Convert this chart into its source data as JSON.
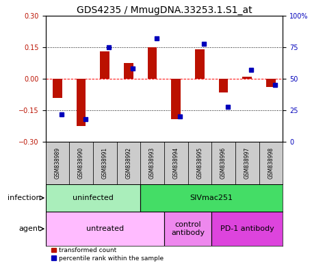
{
  "title": "GDS4235 / MmugDNA.33253.1.S1_at",
  "samples": [
    "GSM838989",
    "GSM838990",
    "GSM838991",
    "GSM838992",
    "GSM838993",
    "GSM838994",
    "GSM838995",
    "GSM838996",
    "GSM838997",
    "GSM838998"
  ],
  "red_values": [
    -0.09,
    -0.225,
    0.13,
    0.075,
    0.15,
    -0.19,
    0.14,
    -0.065,
    0.01,
    -0.04
  ],
  "blue_values_pct": [
    22,
    18,
    75,
    58,
    82,
    20,
    78,
    28,
    57,
    45
  ],
  "ylim": [
    -0.3,
    0.3
  ],
  "yticks_left": [
    -0.3,
    -0.15,
    0.0,
    0.15,
    0.3
  ],
  "yticks_right": [
    0,
    25,
    50,
    75,
    100
  ],
  "hlines": [
    -0.15,
    0.0,
    0.15
  ],
  "infection_groups": [
    {
      "label": "uninfected",
      "start": 0,
      "end": 4,
      "color": "#aaeebb"
    },
    {
      "label": "SIVmac251",
      "start": 4,
      "end": 10,
      "color": "#44dd66"
    }
  ],
  "agent_groups": [
    {
      "label": "untreated",
      "start": 0,
      "end": 5,
      "color": "#ffbbff"
    },
    {
      "label": "control\nantibody",
      "start": 5,
      "end": 7,
      "color": "#ee88ee"
    },
    {
      "label": "PD-1 antibody",
      "start": 7,
      "end": 10,
      "color": "#dd44dd"
    }
  ],
  "red_color": "#bb1100",
  "blue_color": "#0000bb",
  "bar_width": 0.4,
  "legend_red": "transformed count",
  "legend_blue": "percentile rank within the sample",
  "infection_label": "infection",
  "agent_label": "agent",
  "title_fontsize": 10,
  "tick_fontsize": 7,
  "label_fontsize": 8,
  "sample_fontsize": 5.5,
  "group_fontsize": 8
}
